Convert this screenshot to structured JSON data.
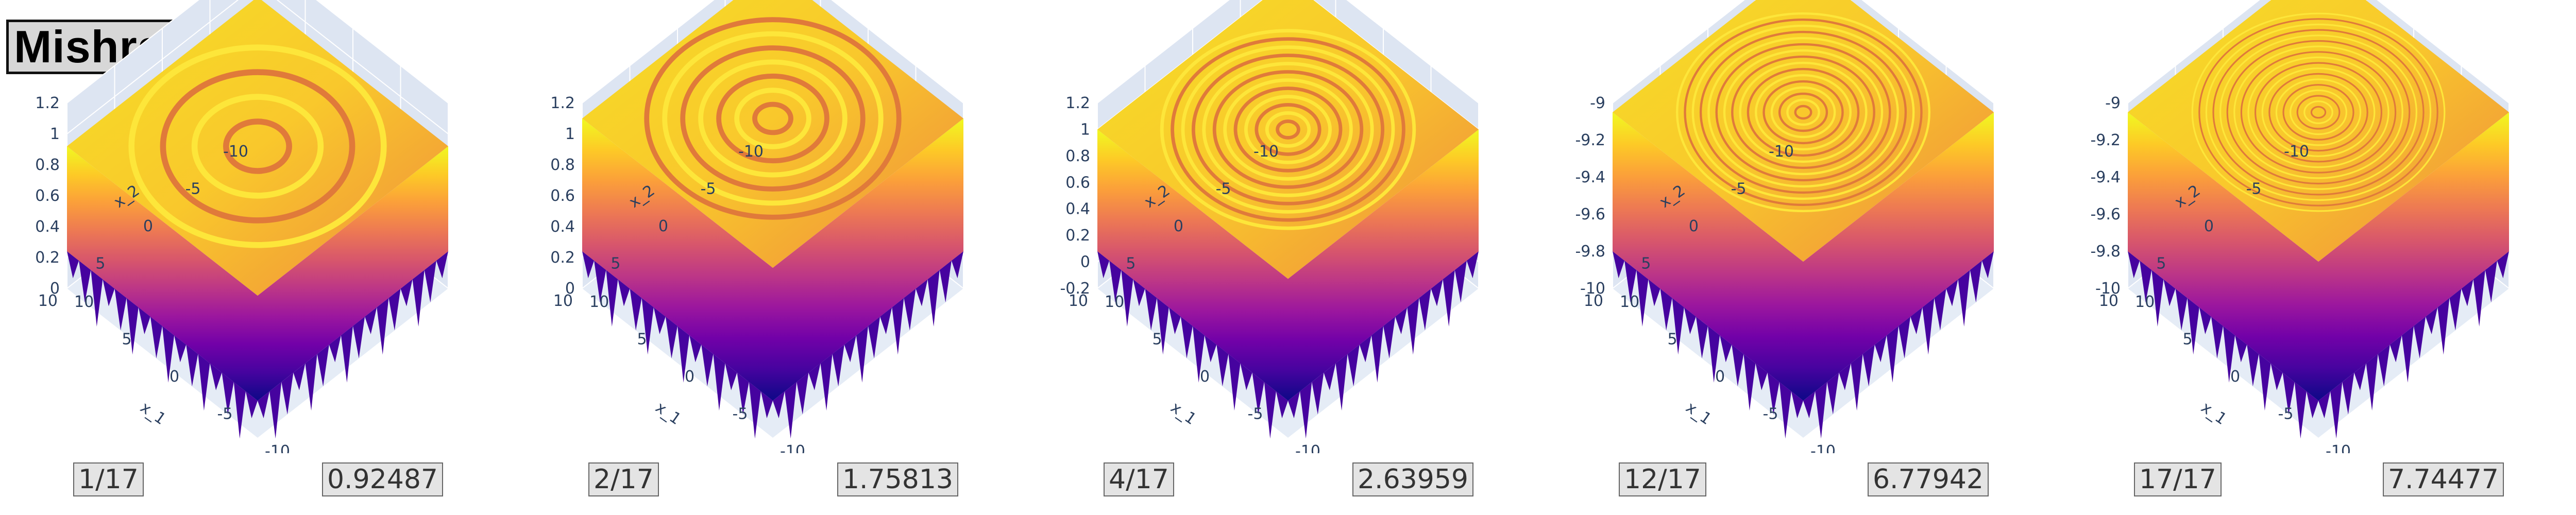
{
  "title": "Mishra4",
  "colors": {
    "scene_bg": "#e5ecf6",
    "wall_bg": "#dde5f2",
    "grid": "#ffffff",
    "tick_text": "#2a3f5f",
    "colorscale": [
      "#0d0887",
      "#46039f",
      "#7201a8",
      "#9c179e",
      "#bd3786",
      "#d8576b",
      "#ed7953",
      "#fb9f3a",
      "#fdca26",
      "#f0f921"
    ]
  },
  "chart_data": [
    {
      "type": "surface",
      "colorscale": "Plasma",
      "frame_label": "1/17",
      "value_label": "0.92487",
      "x_label": "x_1",
      "y_label": "x_2",
      "x_ticks": [
        "-10",
        "-5",
        "0",
        "5",
        "10"
      ],
      "y_ticks": [
        "-10",
        "-5",
        "0",
        "5",
        "10"
      ],
      "z_ticks": [
        "0",
        "0.2",
        "0.4",
        "0.6",
        "0.8",
        "1",
        "1.2"
      ],
      "xlim": [
        -10,
        10
      ],
      "ylim": [
        -10,
        10
      ],
      "zlim": [
        0,
        1.2
      ],
      "surface_top": 0.92,
      "ring_density": 4
    },
    {
      "type": "surface",
      "colorscale": "Plasma",
      "frame_label": "2/17",
      "value_label": "1.75813",
      "x_label": "x_1",
      "y_label": "x_2",
      "x_ticks": [
        "-10",
        "-5",
        "0",
        "5",
        "10"
      ],
      "y_ticks": [
        "-10",
        "-5",
        "0",
        "5",
        "10"
      ],
      "z_ticks": [
        "0",
        "0.2",
        "0.4",
        "0.6",
        "0.8",
        "1",
        "1.2"
      ],
      "xlim": [
        -10,
        10
      ],
      "ylim": [
        -10,
        10
      ],
      "zlim": [
        0,
        1.2
      ],
      "surface_top": 1.1,
      "ring_density": 7
    },
    {
      "type": "surface",
      "colorscale": "Plasma",
      "frame_label": "4/17",
      "value_label": "2.63959",
      "x_label": "x_1",
      "y_label": "x_2",
      "x_ticks": [
        "-10",
        "-5",
        "0",
        "5",
        "10"
      ],
      "y_ticks": [
        "-10",
        "-5",
        "0",
        "5",
        "10"
      ],
      "z_ticks": [
        "-0.2",
        "0",
        "0.2",
        "0.4",
        "0.6",
        "0.8",
        "1",
        "1.2"
      ],
      "xlim": [
        -10,
        10
      ],
      "ylim": [
        -10,
        10
      ],
      "zlim": [
        -0.2,
        1.2
      ],
      "surface_top": 1.0,
      "ring_density": 12
    },
    {
      "type": "surface",
      "colorscale": "Plasma",
      "frame_label": "12/17",
      "value_label": "6.77942",
      "x_label": "x_1",
      "y_label": "x_2",
      "x_ticks": [
        "-10",
        "-5",
        "0",
        "5",
        "10"
      ],
      "y_ticks": [
        "-10",
        "-5",
        "0",
        "5",
        "10"
      ],
      "z_ticks": [
        "-10",
        "-9.8",
        "-9.6",
        "-9.4",
        "-9.2",
        "-9"
      ],
      "xlim": [
        -10,
        10
      ],
      "ylim": [
        -10,
        10
      ],
      "zlim": [
        -10,
        -9
      ],
      "surface_top": -9.05,
      "ring_density": 16
    },
    {
      "type": "surface",
      "colorscale": "Plasma",
      "frame_label": "17/17",
      "value_label": "7.74477",
      "x_label": "x_1",
      "y_label": "x_2",
      "x_ticks": [
        "-10",
        "-5",
        "0",
        "5",
        "10"
      ],
      "y_ticks": [
        "-10",
        "-5",
        "0",
        "5",
        "10"
      ],
      "z_ticks": [
        "-10",
        "-9.8",
        "-9.6",
        "-9.4",
        "-9.2",
        "-9"
      ],
      "xlim": [
        -10,
        10
      ],
      "ylim": [
        -10,
        10
      ],
      "zlim": [
        -10,
        -9
      ],
      "surface_top": -9.05,
      "ring_density": 18
    }
  ]
}
